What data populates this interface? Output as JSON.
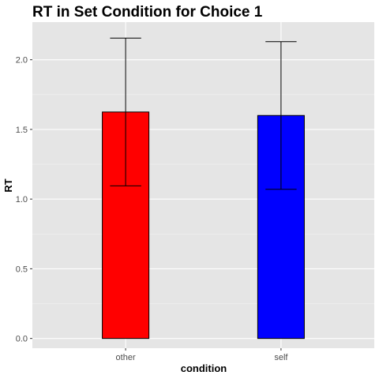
{
  "chart_data": {
    "type": "bar",
    "title": "RT in Set Condition for Choice 1",
    "xlabel": "condition",
    "ylabel": "RT",
    "categories": [
      "other",
      "self"
    ],
    "values": [
      1.625,
      1.6
    ],
    "error_low": [
      1.095,
      1.07
    ],
    "error_high": [
      2.155,
      2.13
    ],
    "bar_colors": [
      "#ff0000",
      "#0000ff"
    ],
    "ylim": [
      -0.07,
      2.27
    ],
    "yticks": [
      0.0,
      0.5,
      1.0,
      1.5,
      2.0
    ],
    "ytick_labels": [
      "0.0",
      "0.5",
      "1.0",
      "1.5",
      "2.0"
    ],
    "panel_background": "#e5e5e5",
    "grid": true
  }
}
